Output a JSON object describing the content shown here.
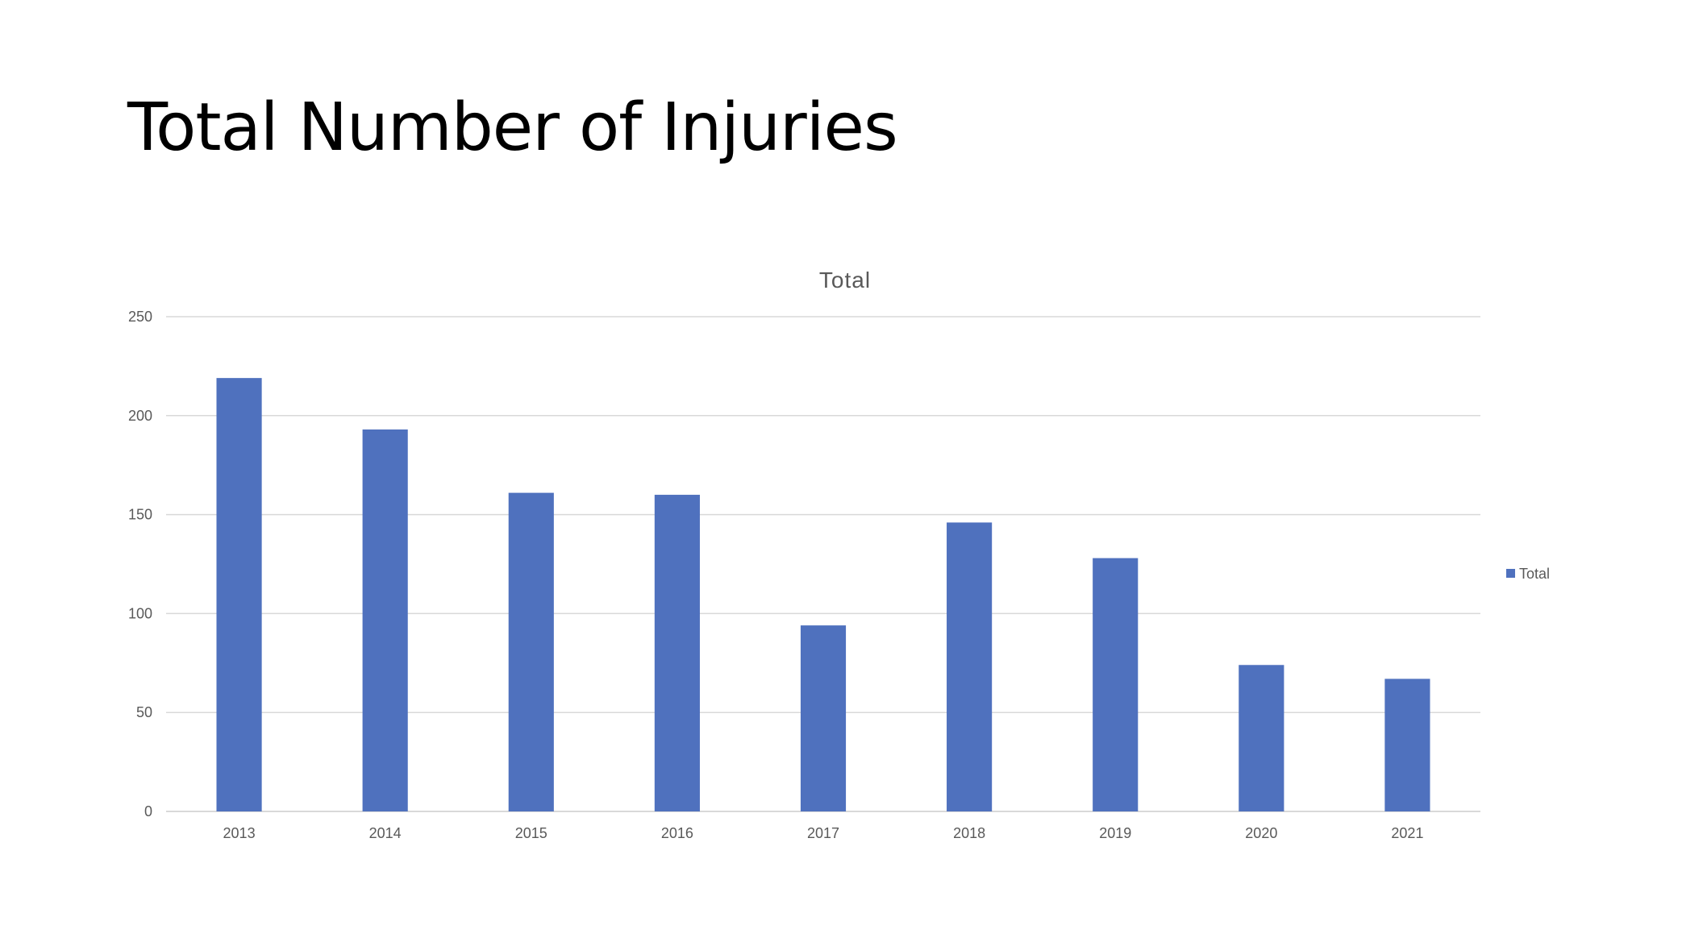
{
  "slide": {
    "title": "Total Number of Injuries"
  },
  "chart_data": {
    "type": "bar",
    "title": "Total",
    "categories": [
      "2013",
      "2014",
      "2015",
      "2016",
      "2017",
      "2018",
      "2019",
      "2020",
      "2021"
    ],
    "series": [
      {
        "name": "Total",
        "color": "#4f71be",
        "values": [
          219,
          193,
          161,
          160,
          94,
          146,
          128,
          74,
          67
        ]
      }
    ],
    "ylim": [
      0,
      250
    ],
    "yticks": [
      0,
      50,
      100,
      150,
      200,
      250
    ],
    "xlabel": "",
    "ylabel": "",
    "grid": true,
    "legend_position": "right"
  }
}
